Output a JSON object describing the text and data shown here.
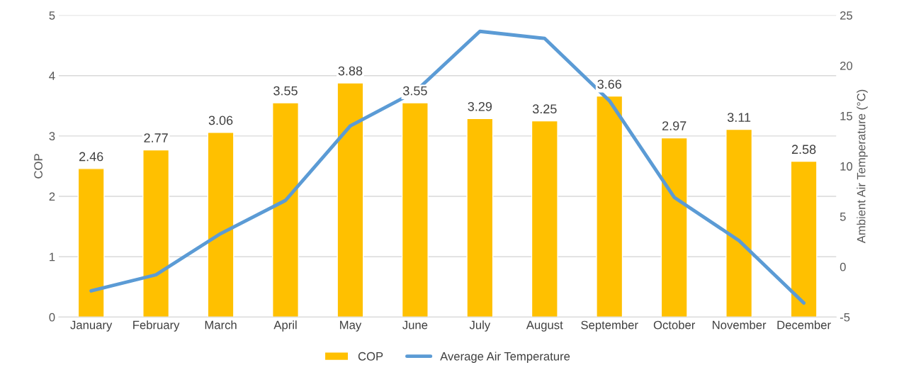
{
  "chart_data": {
    "type": "bar",
    "categories": [
      "January",
      "February",
      "March",
      "April",
      "May",
      "June",
      "July",
      "August",
      "September",
      "October",
      "November",
      "December"
    ],
    "ylabel": "COP",
    "y2label": "Ambient Air Temperature (°C)",
    "ylim": [
      0,
      5
    ],
    "yticks": [
      0,
      1,
      2,
      3,
      4,
      5
    ],
    "y2lim": [
      -5,
      25
    ],
    "y2ticks": [
      -5,
      0,
      5,
      10,
      15,
      20,
      25
    ],
    "grid": "y",
    "legend": "bottom",
    "series": [
      {
        "name": "COP",
        "color": "#ffc000",
        "values": [
          2.46,
          2.77,
          3.06,
          3.55,
          3.88,
          3.55,
          3.29,
          3.25,
          3.66,
          2.97,
          3.11,
          2.58
        ],
        "value_labels": [
          "2.46",
          "2.77",
          "3.06",
          "3.55",
          "3.88",
          "3.55",
          "3.29",
          "3.25",
          "3.66",
          "2.97",
          "3.11",
          "2.58"
        ]
      },
      {
        "name": "Average Air Temperature",
        "type": "line",
        "axis": "y2",
        "color": "#5b9bd5",
        "marker": "none",
        "line_style": "solid",
        "values": [
          -2.4,
          -0.8,
          3.3,
          6.6,
          14.0,
          17.4,
          23.4,
          22.7,
          16.5,
          6.9,
          2.6,
          -3.6
        ]
      }
    ]
  }
}
